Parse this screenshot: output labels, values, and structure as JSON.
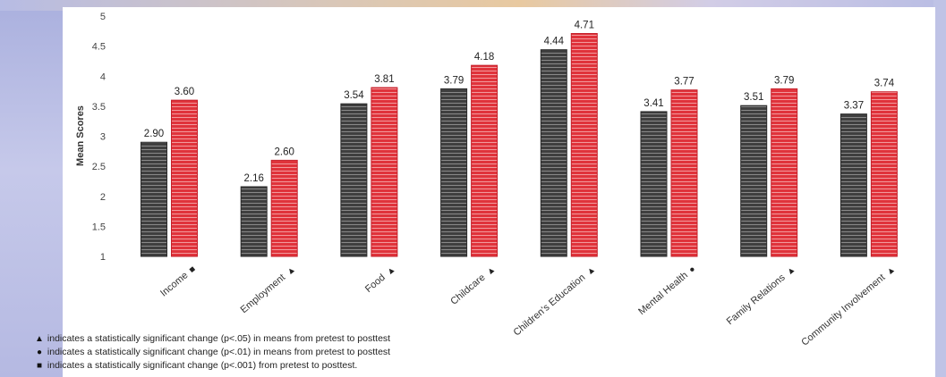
{
  "chart_data": {
    "type": "bar",
    "title": "",
    "xlabel": "",
    "ylabel": "Mean Scores",
    "ylim": [
      1,
      5
    ],
    "yticks": [
      "1",
      "1.5",
      "2",
      "2.5",
      "3",
      "3.5",
      "4",
      "4.5",
      "5"
    ],
    "categories": [
      "Income",
      "Employment",
      "Food",
      "Childcare",
      "Children's Education",
      "Mental Health",
      "Family Relations",
      "Community Involvement"
    ],
    "category_markers": [
      "square",
      "triangle",
      "triangle",
      "triangle",
      "triangle",
      "circle",
      "triangle",
      "triangle"
    ],
    "series": [
      {
        "values": [
          2.9,
          2.16,
          3.54,
          3.79,
          4.44,
          3.41,
          3.51,
          3.37
        ],
        "labels": [
          "2.90",
          "2.16",
          "3.54",
          "3.79",
          "4.44",
          "3.41",
          "3.51",
          "3.37"
        ],
        "color": "#4a4a4a"
      },
      {
        "values": [
          3.6,
          2.6,
          3.81,
          4.18,
          4.71,
          3.77,
          3.79,
          3.74
        ],
        "labels": [
          "3.60",
          "2.60",
          "3.81",
          "4.18",
          "4.71",
          "3.77",
          "3.79",
          "3.74"
        ],
        "color": "#e0333b"
      }
    ],
    "grid": false,
    "bar_pattern": "horizontal-stripes"
  },
  "legend": {
    "triangle": {
      "glyph": "▲",
      "text": "indicates a statistically significant change (p<.05) in means from pretest to posttest"
    },
    "circle": {
      "glyph": "●",
      "text": "indicates a statistically significant change (p<.01) in means from pretest to posttest"
    },
    "square": {
      "glyph": "■",
      "text": "indicates a statistically significant change (p<.001) from pretest to posttest."
    }
  }
}
